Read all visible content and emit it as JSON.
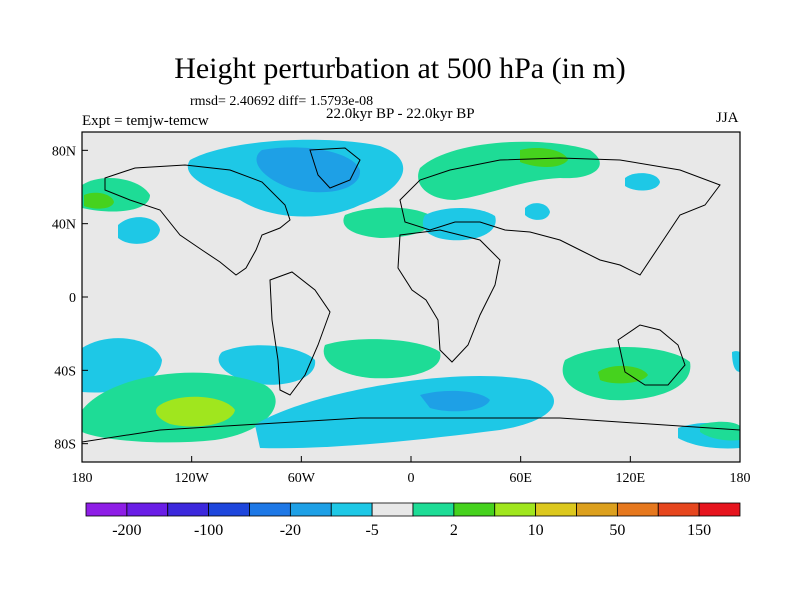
{
  "title": "Height perturbation at 500 hPa (in m)",
  "stats": "rmsd= 2.40692 diff= 1.5793e-08",
  "period": "22.0kyr BP - 22.0kyr BP",
  "experiment": "Expt = temjw-temcw",
  "season": "JJA",
  "map": {
    "background": "#e8e8e8",
    "lat_ticks": [
      {
        "value": 80,
        "label": "80N"
      },
      {
        "value": 40,
        "label": "40N"
      },
      {
        "value": 0,
        "label": "0"
      },
      {
        "value": -40,
        "label": "40S"
      },
      {
        "value": -80,
        "label": "80S"
      }
    ],
    "lon_ticks": [
      {
        "value": -180,
        "label": "180"
      },
      {
        "value": -120,
        "label": "120W"
      },
      {
        "value": -60,
        "label": "60W"
      },
      {
        "value": 0,
        "label": "0"
      },
      {
        "value": 60,
        "label": "60E"
      },
      {
        "value": 120,
        "label": "120E"
      },
      {
        "value": 180,
        "label": "180"
      }
    ]
  },
  "colorbar": {
    "colors": [
      "#8e1ee6",
      "#6a1ee6",
      "#3c28dc",
      "#1e46dc",
      "#1e78e6",
      "#1ea0e6",
      "#1ec8e6",
      "#e8e8e8",
      "#1edc96",
      "#46d21e",
      "#a0e61e",
      "#dcc81e",
      "#dca01e",
      "#e6781e",
      "#e6461e",
      "#e6141e"
    ],
    "labels": [
      "-200",
      "-100",
      "-20",
      "-5",
      "2",
      "10",
      "50",
      "150"
    ]
  }
}
